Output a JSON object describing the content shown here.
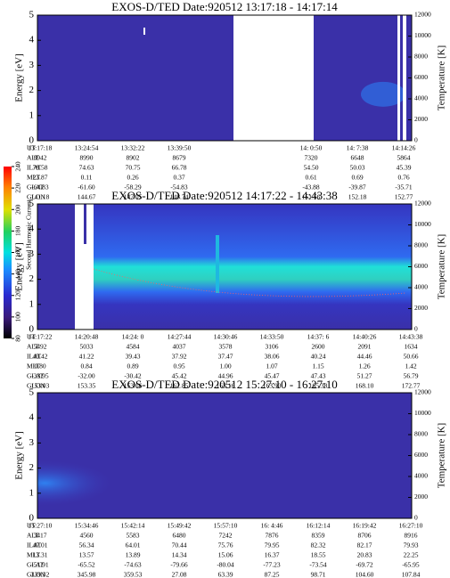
{
  "chart_data": [
    {
      "type": "spectrogram",
      "title": "EXOS-D/TED   Date:920512   13:17:18 - 14:17:14",
      "ylabel": "Energy [eV]",
      "y2label": "Temperature [K]",
      "ylim": [
        0,
        5
      ],
      "yticks": [
        0,
        1,
        2,
        3,
        4,
        5
      ],
      "y2lim": [
        0,
        12000
      ],
      "y2ticks": [
        0,
        2000,
        4000,
        6000,
        8000,
        10000,
        12000
      ],
      "rows": [
        {
          "label": "UT",
          "values": [
            "13:17:18",
            "13:24:54",
            "13:32:22",
            "13:39:50",
            "14: 0:50",
            "14: 7:38",
            "14:14:26"
          ]
        },
        {
          "label": "ALT",
          "values": [
            "8942",
            "8990",
            "8902",
            "8679",
            "7320",
            "6648",
            "5864"
          ]
        },
        {
          "label": "ILAT",
          "values": [
            "78.58",
            "74.63",
            "70.75",
            "66.78",
            "54.50",
            "50.03",
            "45.39"
          ]
        },
        {
          "label": "MLT",
          "values": [
            "23.87",
            "0.11",
            "0.26",
            "0.37",
            "0.61",
            "0.69",
            "0.76"
          ]
        },
        {
          "label": "GLAT",
          "values": [
            "-64.83",
            "-61.60",
            "-58.29",
            "-54.83",
            "-43.88",
            "-39.87",
            "-35.71"
          ]
        },
        {
          "label": "GLON",
          "values": [
            "141.18",
            "144.67",
            "147.05",
            "148.74",
            "151.56",
            "152.18",
            "152.77"
          ]
        }
      ]
    },
    {
      "type": "spectrogram",
      "title": "EXOS-D/TED   Date:920512   14:17:22 - 14:43:38",
      "ylabel": "Energy [eV]",
      "y2label": "Temperature [K]",
      "ylim": [
        0,
        5
      ],
      "yticks": [
        0,
        1,
        2,
        3,
        4,
        5
      ],
      "y2lim": [
        0,
        12000
      ],
      "y2ticks": [
        0,
        2000,
        4000,
        6000,
        8000,
        10000,
        12000
      ],
      "colorbar": {
        "label": "Second Harmonic Current",
        "lim": [
          80,
          240
        ],
        "ticks": [
          80,
          100,
          120,
          140,
          160,
          180,
          200,
          220,
          240
        ]
      },
      "rows": [
        {
          "label": "UT",
          "values": [
            "14:17:22",
            "14:20:48",
            "14:24: 0",
            "14:27:44",
            "14:30:46",
            "14:33:50",
            "14:37: 6",
            "14:40:26",
            "14:43:38"
          ]
        },
        {
          "label": "ALT",
          "values": [
            "5492",
            "5033",
            "4584",
            "4037",
            "3578",
            "3106",
            "2600",
            "2091",
            "1634"
          ]
        },
        {
          "label": "ILAT",
          "values": [
            "43.42",
            "41.22",
            "39.43",
            "37.92",
            "37.47",
            "38.06",
            "40.24",
            "44.46",
            "50.66"
          ]
        },
        {
          "label": "MLT",
          "values": [
            "0.80",
            "0.84",
            "0.89",
            "0.95",
            "1.00",
            "1.07",
            "1.15",
            "1.26",
            "1.42"
          ]
        },
        {
          "label": "GLAT",
          "values": [
            "-33.95",
            "-32.00",
            "-30.42",
            "45.42",
            "44.96",
            "45.47",
            "47.43",
            "51.27",
            "56.79"
          ]
        },
        {
          "label": "GLON",
          "values": [
            "153.03",
            "153.35",
            "153.66",
            "162.85",
            "163.16",
            "163.90",
            "165.38",
            "168.10",
            "172.77"
          ]
        }
      ]
    },
    {
      "type": "spectrogram",
      "title": "EXOS-D/TED   Date:920512   15:27:10 - 16:27:10",
      "ylabel": "Energy [eV]",
      "y2label": "Temperature [K]",
      "ylim": [
        0,
        5
      ],
      "yticks": [
        0,
        1,
        2,
        3,
        4,
        5
      ],
      "y2lim": [
        0,
        12000
      ],
      "y2ticks": [
        0,
        2000,
        4000,
        6000,
        8000,
        10000,
        12000
      ],
      "rows": [
        {
          "label": "UT",
          "values": [
            "15:27:10",
            "15:34:46",
            "15:42:14",
            "15:49:42",
            "15:57:10",
            "16: 4:46",
            "16:12:14",
            "16:19:42",
            "16:27:10"
          ]
        },
        {
          "label": "ALT",
          "values": [
            "3417",
            "4560",
            "5583",
            "6480",
            "7242",
            "7876",
            "8359",
            "8706",
            "8916"
          ]
        },
        {
          "label": "ILAT",
          "values": [
            "47.01",
            "56.34",
            "64.01",
            "70.44",
            "75.76",
            "79.95",
            "82.32",
            "82.17",
            "79.93"
          ]
        },
        {
          "label": "MLT",
          "values": [
            "13.31",
            "13.57",
            "13.89",
            "14.34",
            "15.06",
            "16.37",
            "18.55",
            "20.83",
            "22.25"
          ]
        },
        {
          "label": "GLAT",
          "values": [
            "-51.91",
            "-65.52",
            "-74.63",
            "-79.66",
            "-80.04",
            "-77.23",
            "-73.54",
            "-69.72",
            "-65.95"
          ]
        },
        {
          "label": "GLON",
          "values": [
            "339.32",
            "345.98",
            "359.53",
            "27.08",
            "63.39",
            "87.25",
            "98.71",
            "104.60",
            "107.84"
          ]
        }
      ]
    }
  ]
}
